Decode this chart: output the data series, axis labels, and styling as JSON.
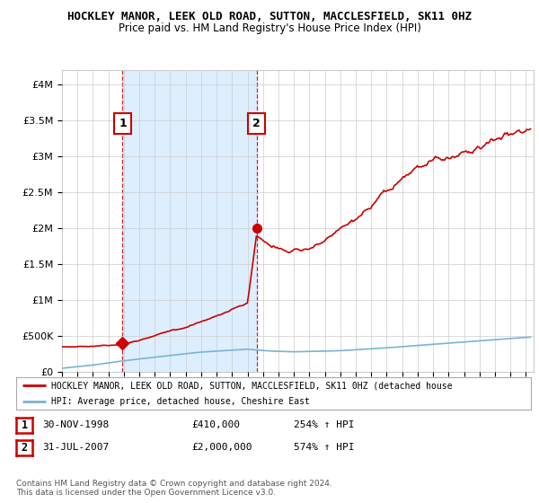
{
  "title": "HOCKLEY MANOR, LEEK OLD ROAD, SUTTON, MACCLESFIELD, SK11 0HZ",
  "subtitle": "Price paid vs. HM Land Registry's House Price Index (HPI)",
  "ylabel_ticks": [
    "£0",
    "£500K",
    "£1M",
    "£1.5M",
    "£2M",
    "£2.5M",
    "£3M",
    "£3.5M",
    "£4M"
  ],
  "ylabel_values": [
    0,
    500000,
    1000000,
    1500000,
    2000000,
    2500000,
    3000000,
    3500000,
    4000000
  ],
  "ylim": [
    0,
    4200000
  ],
  "hpi_color": "#7ab3d4",
  "price_color": "#cc0000",
  "shade_color": "#ddeeff",
  "marker1_date": 1998.92,
  "marker1_value": 410000,
  "marker1_label": "1",
  "marker2_date": 2007.58,
  "marker2_value": 2000000,
  "marker2_label": "2",
  "legend_line1": "HOCKLEY MANOR, LEEK OLD ROAD, SUTTON, MACCLESFIELD, SK11 0HZ (detached house",
  "legend_line2": "HPI: Average price, detached house, Cheshire East",
  "table_row1": [
    "1",
    "30-NOV-1998",
    "£410,000",
    "254% ↑ HPI"
  ],
  "table_row2": [
    "2",
    "31-JUL-2007",
    "£2,000,000",
    "574% ↑ HPI"
  ],
  "footnote": "Contains HM Land Registry data © Crown copyright and database right 2024.\nThis data is licensed under the Open Government Licence v3.0.",
  "background_color": "#ffffff",
  "grid_color": "#cccccc",
  "title_color": "#000000"
}
